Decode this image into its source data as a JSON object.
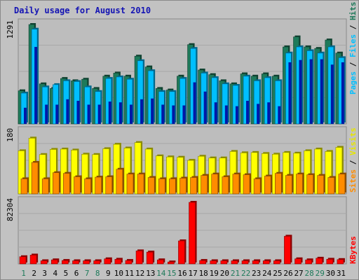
{
  "title": "Daily usage for August 2010",
  "panels": {
    "top": {
      "max_label": "1291",
      "legend": {
        "pages": "Pages",
        "files": "Files",
        "hits": "Hits",
        "sep": " / "
      }
    },
    "mid": {
      "max_label": "180",
      "legend": {
        "sites": "Sites",
        "visits": "Visits",
        "sep": " / "
      }
    },
    "bottom": {
      "max_label": "82304",
      "legend": {
        "kbytes": "KBytes"
      }
    }
  },
  "colors": {
    "hits": "#1e7a5a",
    "files": "#00bfff",
    "pages": "#0018a8",
    "visits": "#ffff00",
    "sites": "#ff8c00",
    "kbytes": "#ff0000",
    "weekday_label": "#000000",
    "weekend_label": "#1e7a5a",
    "background": "#c2c2c2",
    "plot_bg": "#bdbdbd",
    "title": "#1414b4"
  },
  "chart_data": {
    "type": "bar",
    "days": [
      1,
      2,
      3,
      4,
      5,
      6,
      7,
      8,
      9,
      10,
      11,
      12,
      13,
      14,
      15,
      16,
      17,
      18,
      19,
      20,
      21,
      22,
      23,
      24,
      25,
      26,
      27,
      28,
      29,
      30,
      31
    ],
    "weekend_days": [
      1,
      7,
      8,
      14,
      15,
      21,
      22,
      28,
      29
    ],
    "top": {
      "ymax": 1291,
      "series": [
        {
          "name": "Hits",
          "values": [
            430,
            1291,
            520,
            460,
            590,
            560,
            580,
            460,
            620,
            660,
            620,
            880,
            740,
            460,
            440,
            620,
            1030,
            700,
            640,
            560,
            520,
            650,
            620,
            650,
            620,
            1000,
            1130,
            1000,
            980,
            1090,
            920
          ]
        },
        {
          "name": "Files",
          "values": [
            400,
            1230,
            480,
            510,
            560,
            550,
            480,
            420,
            590,
            610,
            580,
            820,
            690,
            420,
            420,
            590,
            980,
            660,
            600,
            520,
            500,
            620,
            560,
            600,
            560,
            920,
            1000,
            950,
            920,
            1000,
            860
          ]
        },
        {
          "name": "Pages",
          "values": [
            210,
            1000,
            250,
            250,
            320,
            300,
            250,
            250,
            290,
            280,
            250,
            320,
            330,
            250,
            240,
            240,
            540,
            420,
            280,
            240,
            230,
            300,
            260,
            280,
            230,
            800,
            830,
            840,
            840,
            770,
            800
          ]
        }
      ]
    },
    "mid": {
      "ymax": 180,
      "series": [
        {
          "name": "Visits",
          "values": [
            126,
            163,
            115,
            130,
            131,
            128,
            116,
            115,
            132,
            145,
            134,
            150,
            131,
            111,
            108,
            107,
            98,
            110,
            105,
            105,
            124,
            120,
            121,
            118,
            116,
            121,
            119,
            126,
            131,
            124,
            136
          ]
        },
        {
          "name": "Sites",
          "values": [
            44,
            92,
            44,
            62,
            60,
            50,
            44,
            49,
            50,
            72,
            58,
            58,
            48,
            44,
            44,
            46,
            48,
            54,
            58,
            50,
            58,
            56,
            44,
            52,
            60,
            54,
            58,
            56,
            54,
            48,
            58
          ]
        }
      ]
    },
    "bottom": {
      "ymax": 82304,
      "series": [
        {
          "name": "KBytes",
          "values": [
            9600,
            11800,
            4200,
            5400,
            4600,
            4200,
            4200,
            4200,
            6800,
            6200,
            4600,
            17400,
            15800,
            5400,
            2600,
            30800,
            82304,
            4600,
            4200,
            4200,
            4200,
            4200,
            4200,
            4200,
            4200,
            37000,
            6800,
            5400,
            7600,
            6200,
            5800
          ]
        }
      ]
    }
  }
}
